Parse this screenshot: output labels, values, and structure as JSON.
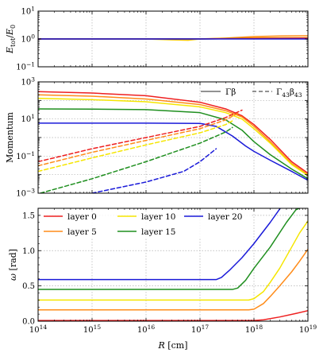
{
  "chart_data": [
    {
      "id": "energy",
      "type": "line",
      "xscale": "log",
      "yscale": "log",
      "xlim": [
        100000000000000.0,
        1e+19
      ],
      "ylim": [
        0.1,
        10
      ],
      "ylabel": "E_tot/E_0",
      "ylabel_parts": {
        "main": "E",
        "sub1": "tot",
        "slash": "/",
        "main2": "E",
        "sub2": "0"
      },
      "yticks": [
        {
          "v": 0.1,
          "base": "10",
          "exp": "−1"
        },
        {
          "v": 1,
          "base": "10",
          "exp": "0"
        },
        {
          "v": 10,
          "base": "10",
          "exp": "1"
        }
      ],
      "grid": true,
      "series": [
        {
          "color": "#ff8c1a",
          "x": [
            100000000000000.0,
            1e+16,
            1e+17,
            3e+17,
            1e+18,
            3e+18,
            1e+19
          ],
          "y": [
            1.0,
            1.0,
            1.0,
            1.08,
            1.22,
            1.28,
            1.3
          ]
        },
        {
          "color": "#f5c400",
          "x": [
            100000000000000.0,
            1e+16,
            3e+16,
            6e+16,
            1e+17,
            1e+18,
            1e+19
          ],
          "y": [
            1.0,
            1.0,
            0.93,
            0.9,
            1.0,
            1.1,
            1.1
          ]
        },
        {
          "color": "#1f8f1f",
          "x": [
            100000000000000.0,
            1e+17,
            1e+18,
            1e+19
          ],
          "y": [
            1.0,
            1.0,
            1.05,
            1.08
          ]
        },
        {
          "color": "#ee2020",
          "x": [
            100000000000000.0,
            1e+17,
            1e+18,
            1e+19
          ],
          "y": [
            1.0,
            1.0,
            1.05,
            1.08
          ]
        },
        {
          "color": "#1a1ad9",
          "x": [
            100000000000000.0,
            1e+16,
            1e+17,
            1e+18,
            1e+19
          ],
          "y": [
            1.0,
            1.0,
            1.0,
            1.0,
            1.0
          ]
        }
      ]
    },
    {
      "id": "momentum",
      "type": "line",
      "xscale": "log",
      "yscale": "log",
      "xlim": [
        100000000000000.0,
        1e+19
      ],
      "ylim": [
        0.001,
        1000
      ],
      "ylabel": "Momentum",
      "yticks": [
        {
          "v": 0.001,
          "base": "10",
          "exp": "−3"
        },
        {
          "v": 0.1,
          "base": "10",
          "exp": "−1"
        },
        {
          "v": 10,
          "base": "10",
          "exp": "1"
        },
        {
          "v": 1000,
          "base": "10",
          "exp": "3"
        }
      ],
      "grid": true,
      "legend": {
        "position": "top-right",
        "solid_label": "Γβ",
        "dashed_label": "Γ43β43",
        "dashed_parts": {
          "main1": "Γ",
          "sub1": "43",
          "main2": "β",
          "sub2": "43"
        }
      },
      "series": [
        {
          "layer": 0,
          "style": "solid",
          "color": "#ee2020",
          "x": [
            100000000000000.0,
            1000000000000000.0,
            1e+16,
            1e+17,
            3e+17,
            6e+17,
            1e+18,
            2e+18,
            5e+18,
            1e+19
          ],
          "y": [
            300,
            250,
            180,
            80,
            35,
            15,
            5,
            0.8,
            0.05,
            0.012
          ]
        },
        {
          "layer": 5,
          "style": "solid",
          "color": "#ff8c1a",
          "x": [
            100000000000000.0,
            1000000000000000.0,
            1e+16,
            1e+17,
            3e+17,
            6e+17,
            1e+18,
            2e+18,
            5e+18,
            1e+19
          ],
          "y": [
            200,
            170,
            120,
            60,
            28,
            13,
            4,
            0.6,
            0.04,
            0.01
          ]
        },
        {
          "layer": 10,
          "style": "solid",
          "color": "#f5e600",
          "x": [
            100000000000000.0,
            1000000000000000.0,
            1e+16,
            1e+17,
            3e+17,
            6e+17,
            1e+18,
            2e+18,
            5e+18,
            1e+19
          ],
          "y": [
            130,
            110,
            85,
            45,
            22,
            10,
            3,
            0.5,
            0.035,
            0.009
          ]
        },
        {
          "layer": 15,
          "style": "solid",
          "color": "#1f8f1f",
          "x": [
            100000000000000.0,
            1000000000000000.0,
            1e+16,
            1e+17,
            3e+17,
            6e+17,
            1e+18,
            2e+18,
            5e+18,
            1e+19
          ],
          "y": [
            35,
            34,
            32,
            22,
            9,
            2.5,
            0.6,
            0.12,
            0.02,
            0.006
          ]
        },
        {
          "layer": 20,
          "style": "solid",
          "color": "#1a1ad9",
          "x": [
            100000000000000.0,
            1000000000000000.0,
            1e+16,
            1e+17,
            2e+17,
            4e+17,
            7e+17,
            1e+18,
            2e+18,
            5e+18,
            1e+19
          ],
          "y": [
            6,
            6,
            6,
            5.8,
            4,
            1.2,
            0.35,
            0.18,
            0.06,
            0.015,
            0.005
          ]
        },
        {
          "layer": 0,
          "style": "dashed",
          "color": "#ee2020",
          "x": [
            100000000000000.0,
            1000000000000000.0,
            1e+16,
            1e+17,
            3e+17,
            6e+17
          ],
          "y": [
            0.05,
            0.25,
            1.0,
            4.0,
            12.0,
            30.0
          ]
        },
        {
          "layer": 5,
          "style": "dashed",
          "color": "#ff8c1a",
          "x": [
            100000000000000.0,
            1000000000000000.0,
            1e+16,
            1e+17,
            3e+17,
            5e+17
          ],
          "y": [
            0.03,
            0.16,
            0.7,
            3.0,
            9.0,
            20.0
          ]
        },
        {
          "layer": 10,
          "style": "dashed",
          "color": "#f5e600",
          "x": [
            100000000000000.0,
            1000000000000000.0,
            1e+16,
            1e+17,
            3e+17,
            4e+17
          ],
          "y": [
            0.015,
            0.08,
            0.4,
            1.8,
            5.0,
            8.0
          ]
        },
        {
          "layer": 15,
          "style": "dashed",
          "color": "#1f8f1f",
          "x": [
            110000000000000.0,
            1000000000000000.0,
            1e+16,
            1e+17,
            3e+17,
            4e+17
          ],
          "y": [
            0.001,
            0.006,
            0.05,
            0.5,
            2.0,
            3.5
          ]
        },
        {
          "layer": 20,
          "style": "dashed",
          "color": "#1a1ad9",
          "x": [
            1000000000000000.0,
            1e+16,
            5e+16,
            1e+17,
            2e+17
          ],
          "y": [
            0.001,
            0.004,
            0.015,
            0.05,
            0.25
          ]
        }
      ]
    },
    {
      "id": "omega",
      "type": "line",
      "xscale": "log",
      "yscale": "linear",
      "xlim": [
        100000000000000.0,
        1e+19
      ],
      "ylim": [
        0,
        1.6
      ],
      "xlabel": "R [cm]",
      "xlabel_var": "R",
      "xlabel_unit": " [cm]",
      "ylabel": "ω [rad]",
      "ylabel_var": "ω",
      "ylabel_unit": " [rad]",
      "xticks": [
        {
          "v": 100000000000000.0,
          "base": "10",
          "exp": "14"
        },
        {
          "v": 1000000000000000.0,
          "base": "10",
          "exp": "15"
        },
        {
          "v": 1e+16,
          "base": "10",
          "exp": "16"
        },
        {
          "v": 1e+17,
          "base": "10",
          "exp": "17"
        },
        {
          "v": 1e+18,
          "base": "10",
          "exp": "18"
        },
        {
          "v": 1e+19,
          "base": "10",
          "exp": "19"
        }
      ],
      "yticks": [
        {
          "v": 0.0,
          "label": "0.0"
        },
        {
          "v": 0.5,
          "label": "0.5"
        },
        {
          "v": 1.0,
          "label": "1.0"
        },
        {
          "v": 1.5,
          "label": "1.5"
        }
      ],
      "grid": true,
      "legend": {
        "position": "top-left",
        "entries": [
          {
            "label": "layer 0",
            "color": "#ee2020"
          },
          {
            "label": "layer 10",
            "color": "#f5e600"
          },
          {
            "label": "layer 20",
            "color": "#1a1ad9"
          },
          {
            "label": "layer 5",
            "color": "#ff8c1a"
          },
          {
            "label": "layer 15",
            "color": "#1f8f1f"
          }
        ]
      },
      "series": [
        {
          "name": "layer 0",
          "color": "#ee2020",
          "x": [
            100000000000000.0,
            1e+17,
            1e+18,
            1.5e+18,
            3e+18,
            6e+18,
            1e+19
          ],
          "y": [
            0.01,
            0.01,
            0.01,
            0.02,
            0.06,
            0.11,
            0.15
          ]
        },
        {
          "name": "layer 5",
          "color": "#ff8c1a",
          "x": [
            100000000000000.0,
            1e+17,
            8e+17,
            1e+18,
            1.5e+18,
            2e+18,
            3e+18,
            5e+18,
            7e+18,
            1e+19
          ],
          "y": [
            0.16,
            0.16,
            0.16,
            0.17,
            0.25,
            0.35,
            0.5,
            0.7,
            0.85,
            1.02
          ]
        },
        {
          "name": "layer 10",
          "color": "#f5e600",
          "x": [
            100000000000000.0,
            1e+17,
            8e+17,
            1e+18,
            1.5e+18,
            2e+18,
            3e+18,
            5e+18,
            7e+18,
            1e+19
          ],
          "y": [
            0.3,
            0.3,
            0.3,
            0.32,
            0.42,
            0.55,
            0.75,
            1.05,
            1.25,
            1.42
          ]
        },
        {
          "name": "layer 15",
          "color": "#1f8f1f",
          "x": [
            100000000000000.0,
            1e+17,
            4e+17,
            5e+17,
            7e+17,
            1e+18,
            2e+18,
            4e+18,
            6e+18,
            8e+18
          ],
          "y": [
            0.45,
            0.45,
            0.45,
            0.47,
            0.58,
            0.75,
            1.05,
            1.4,
            1.58,
            1.62
          ]
        },
        {
          "name": "layer 20",
          "color": "#1a1ad9",
          "x": [
            100000000000000.0,
            1e+17,
            2e+17,
            2.5e+17,
            3.5e+17,
            6e+17,
            1e+18,
            2e+18,
            3.2e+18
          ],
          "y": [
            0.59,
            0.59,
            0.59,
            0.62,
            0.72,
            0.9,
            1.1,
            1.4,
            1.62
          ]
        }
      ]
    }
  ]
}
